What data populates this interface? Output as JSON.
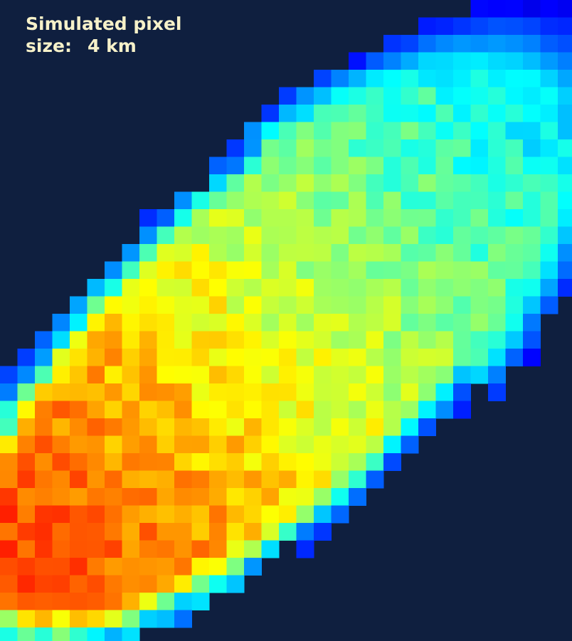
{
  "label": {
    "line1": "Simulated pixel",
    "size_label": "size:",
    "size_value": "4 km"
  }
}
